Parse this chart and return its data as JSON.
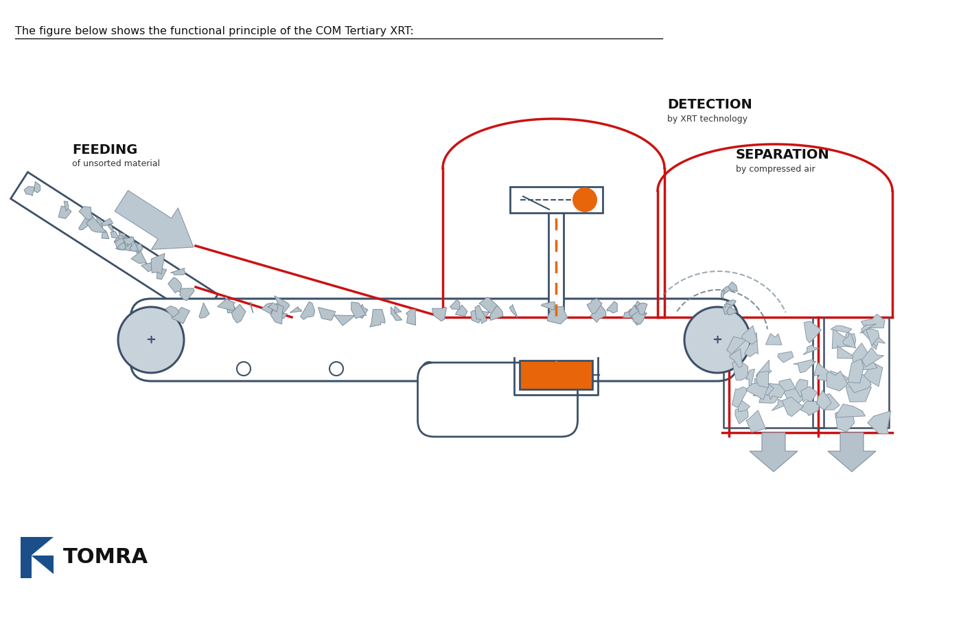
{
  "title_text": "The figure below shows the functional principle of the COM Tertiary XRT:",
  "feeding_label": "FEEDING",
  "feeding_sublabel": "of unsorted material",
  "detection_label": "DETECTION",
  "detection_sublabel": "by XRT technology",
  "separation_label": "SEPARATION",
  "separation_sublabel": "by compressed air",
  "bg_color": "#ffffff",
  "red_color": "#cc1111",
  "dark_gray": "#3d5068",
  "medium_gray": "#6a7d8e",
  "light_gray": "#b0bec5",
  "pale_gray": "#cdd5da",
  "orange_color": "#e8650a",
  "belt_fill": "#c8d2da",
  "rock_fill": "#b8c4cc",
  "rock_edge": "#7a8d9a",
  "tomra_blue": "#1a4f8a",
  "arrow_gray": "#b5c2cc",
  "arrow_edge": "#8090a0"
}
